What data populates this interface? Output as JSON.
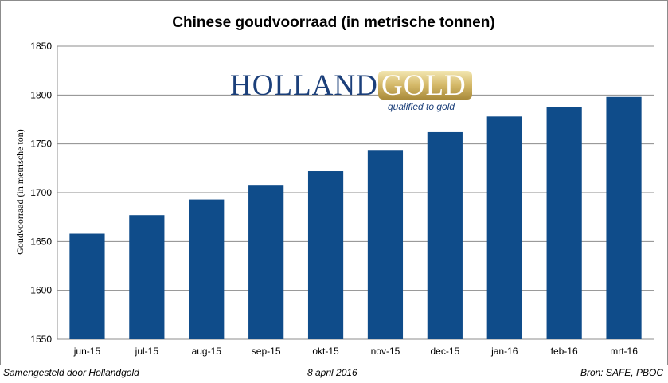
{
  "chart_data": {
    "type": "bar",
    "title": "Chinese goudvoorraad (in metrische tonnen)",
    "ylabel": "Goudvoorraad (in metrische ton)",
    "xlabel": "",
    "categories": [
      "jun-15",
      "jul-15",
      "aug-15",
      "sep-15",
      "okt-15",
      "nov-15",
      "dec-15",
      "jan-16",
      "feb-16",
      "mrt-16"
    ],
    "values": [
      1658,
      1677,
      1693,
      1708,
      1722,
      1743,
      1762,
      1778,
      1788,
      1798
    ],
    "ylim": [
      1550,
      1850
    ],
    "yticks": [
      1550,
      1600,
      1650,
      1700,
      1750,
      1800,
      1850
    ],
    "grid": true,
    "bar_color": "#0f4c8a"
  },
  "logo": {
    "brand_part1": "HOLLAND",
    "brand_part2": "GOLD",
    "tagline": "qualified to gold",
    "brand_color": "#1b3f7a",
    "gold_color": "#d9c070"
  },
  "footer": {
    "left": "Samengesteld door Hollandgold",
    "center": "8 april 2016",
    "right": "Bron: SAFE, PBOC"
  }
}
